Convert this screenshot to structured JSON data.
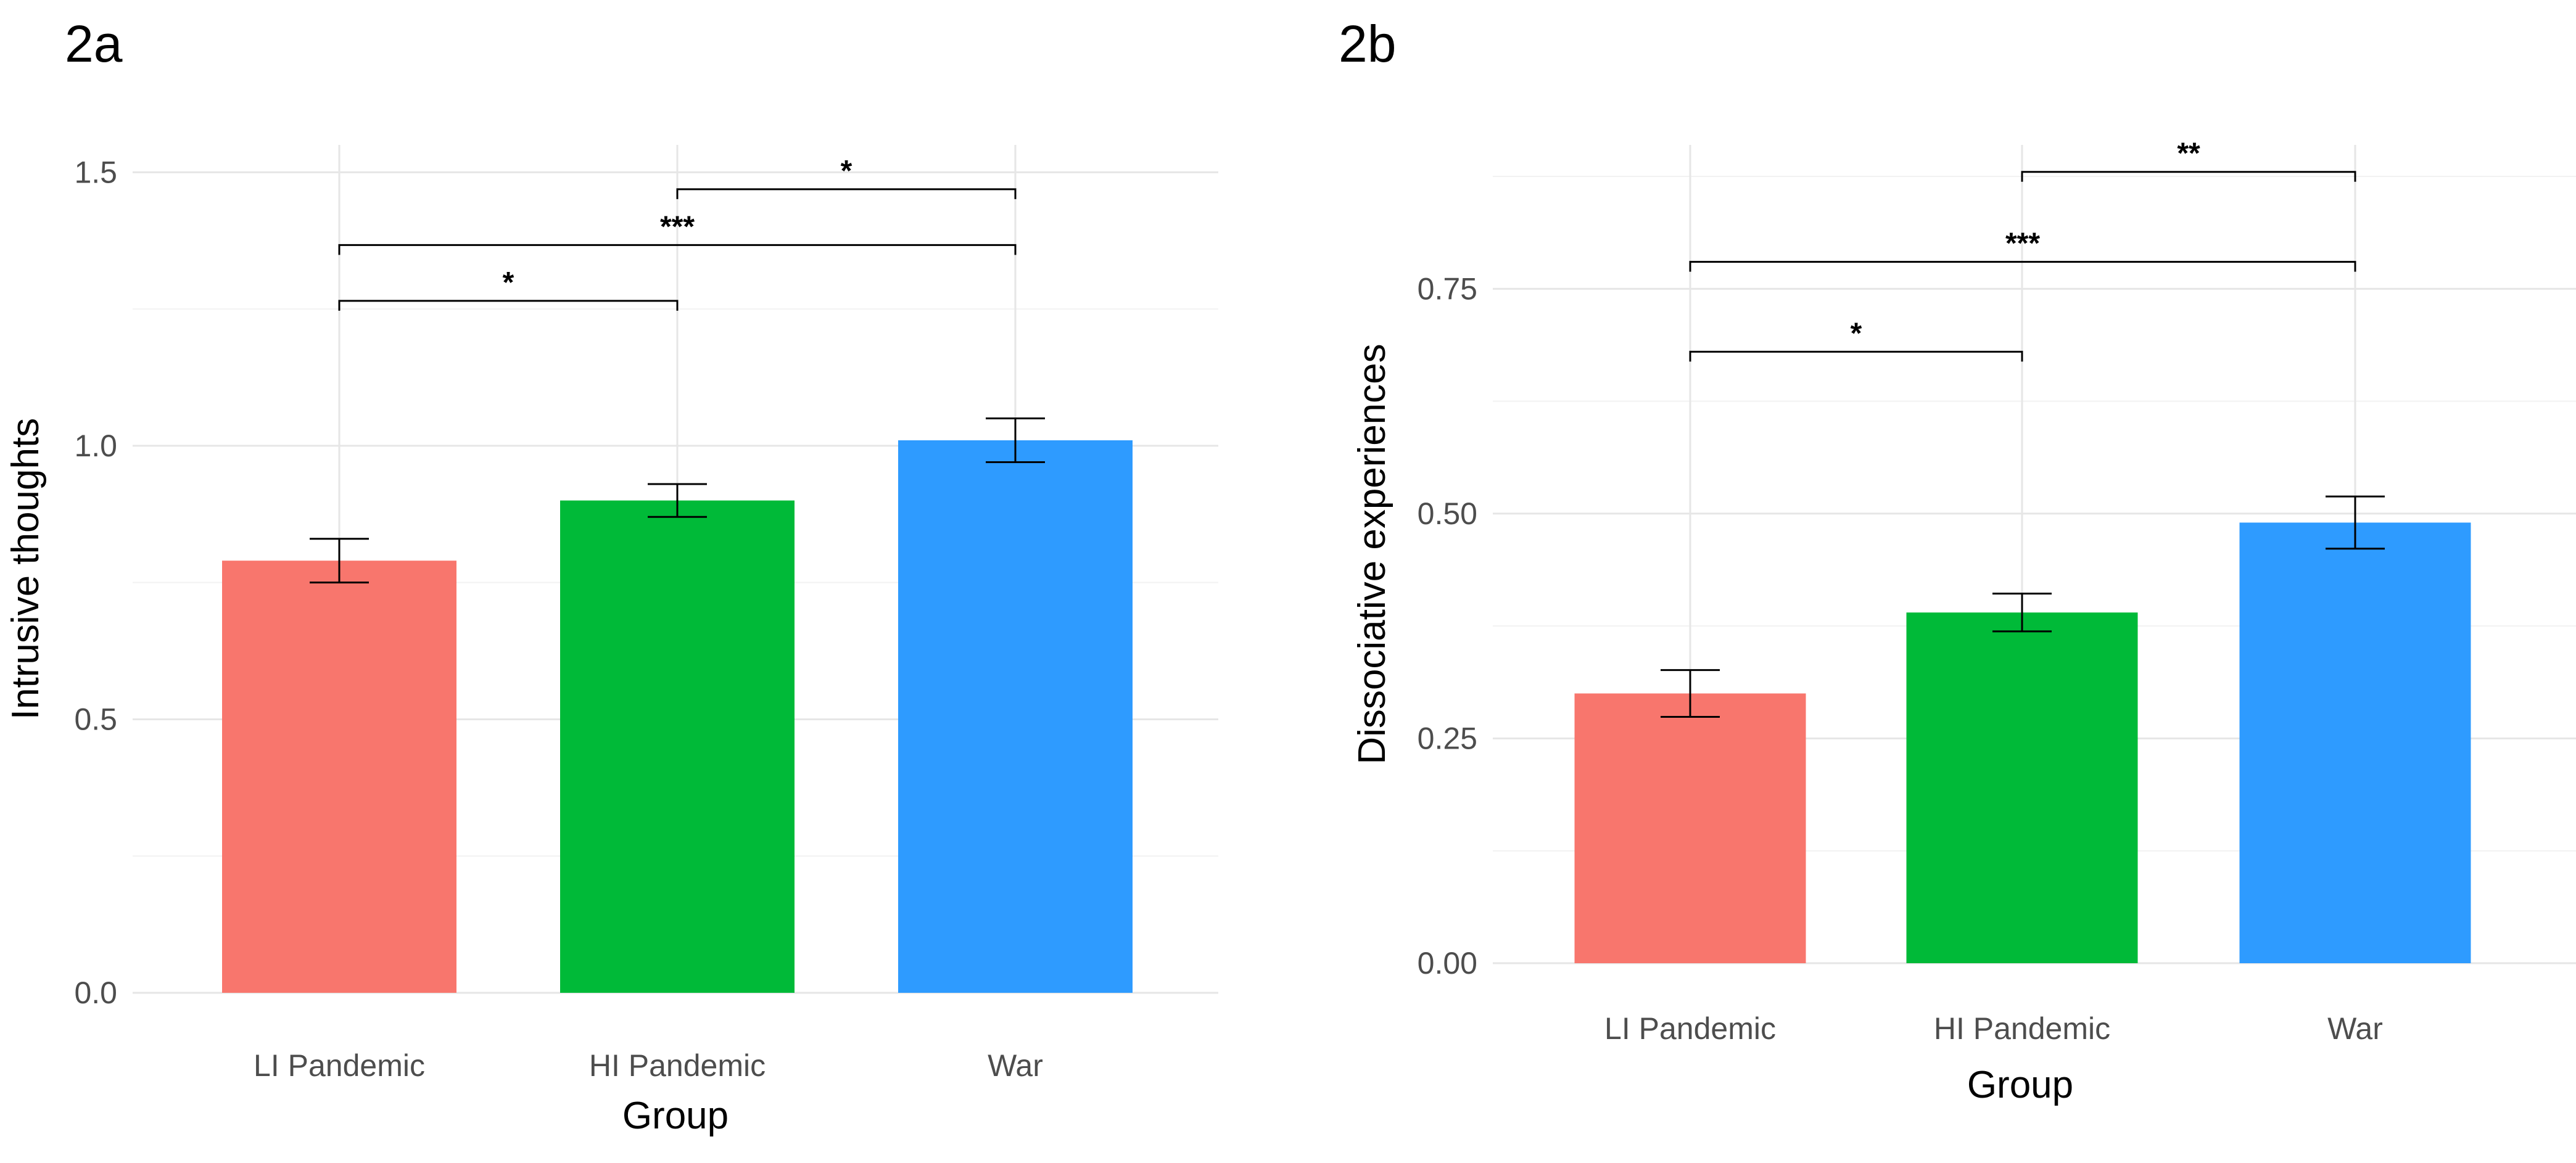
{
  "figure_labels": [
    "2a",
    "2b"
  ],
  "chart_data": [
    {
      "type": "bar",
      "panel_label": "2a",
      "categories": [
        "LI Pandemic",
        "HI Pandemic",
        "War"
      ],
      "values": [
        0.79,
        0.9,
        1.01
      ],
      "errors": [
        0.04,
        0.03,
        0.04
      ],
      "colors": [
        "#F8766D",
        "#00BA38",
        "#2E9BFF"
      ],
      "xlabel": "Group",
      "ylabel": "Intrusive thoughts",
      "ylim": [
        0,
        1.55
      ],
      "yticks": [
        0.0,
        0.5,
        1.0,
        1.5
      ],
      "ytick_labels": [
        "0.0",
        "0.5",
        "1.0",
        "1.5"
      ],
      "minor_yticks": [
        0.25,
        0.75,
        1.25
      ],
      "grid": true,
      "significance": [
        {
          "from": 0,
          "to": 1,
          "y": 1.265,
          "label": "*"
        },
        {
          "from": 0,
          "to": 2,
          "y": 1.367,
          "label": "***"
        },
        {
          "from": 1,
          "to": 2,
          "y": 1.469,
          "label": "*"
        }
      ]
    },
    {
      "type": "bar",
      "panel_label": "2b",
      "categories": [
        "LI Pandemic",
        "HI Pandemic",
        "War"
      ],
      "values": [
        0.3,
        0.39,
        0.49
      ],
      "errors": [
        0.026,
        0.021,
        0.029
      ],
      "colors": [
        "#F8766D",
        "#00BA38",
        "#2E9BFF"
      ],
      "xlabel": "Group",
      "ylabel": "Dissociative experiences",
      "ylim": [
        0,
        0.91
      ],
      "yticks": [
        0.0,
        0.25,
        0.5,
        0.75
      ],
      "ytick_labels": [
        "0.00",
        "0.25",
        "0.50",
        "0.75"
      ],
      "minor_yticks": [
        0.125,
        0.375,
        0.625,
        0.875
      ],
      "grid": true,
      "significance": [
        {
          "from": 0,
          "to": 1,
          "y": 0.68,
          "label": "*"
        },
        {
          "from": 0,
          "to": 2,
          "y": 0.78,
          "label": "***"
        },
        {
          "from": 1,
          "to": 2,
          "y": 0.88,
          "label": "**"
        }
      ]
    }
  ]
}
